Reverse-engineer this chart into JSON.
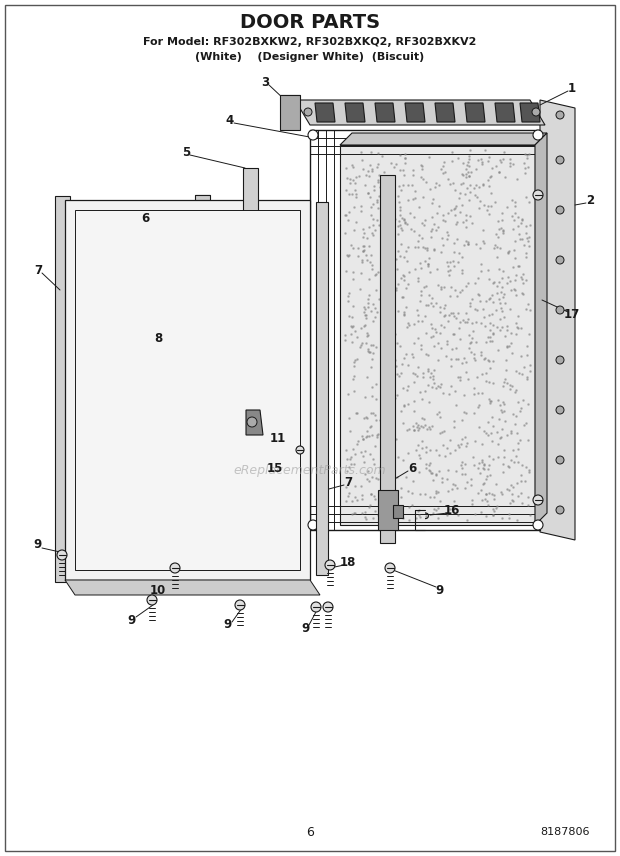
{
  "title": "DOOR PARTS",
  "subtitle1": "For Model: RF302BXKW2, RF302BXKQ2, RF302BXKV2",
  "subtitle2": "(White)    (Designer White)  (Biscuit)",
  "page_number": "6",
  "part_number": "8187806",
  "bg_color": "#ffffff",
  "lc": "#1a1a1a",
  "watermark": "eReplacementParts.com"
}
